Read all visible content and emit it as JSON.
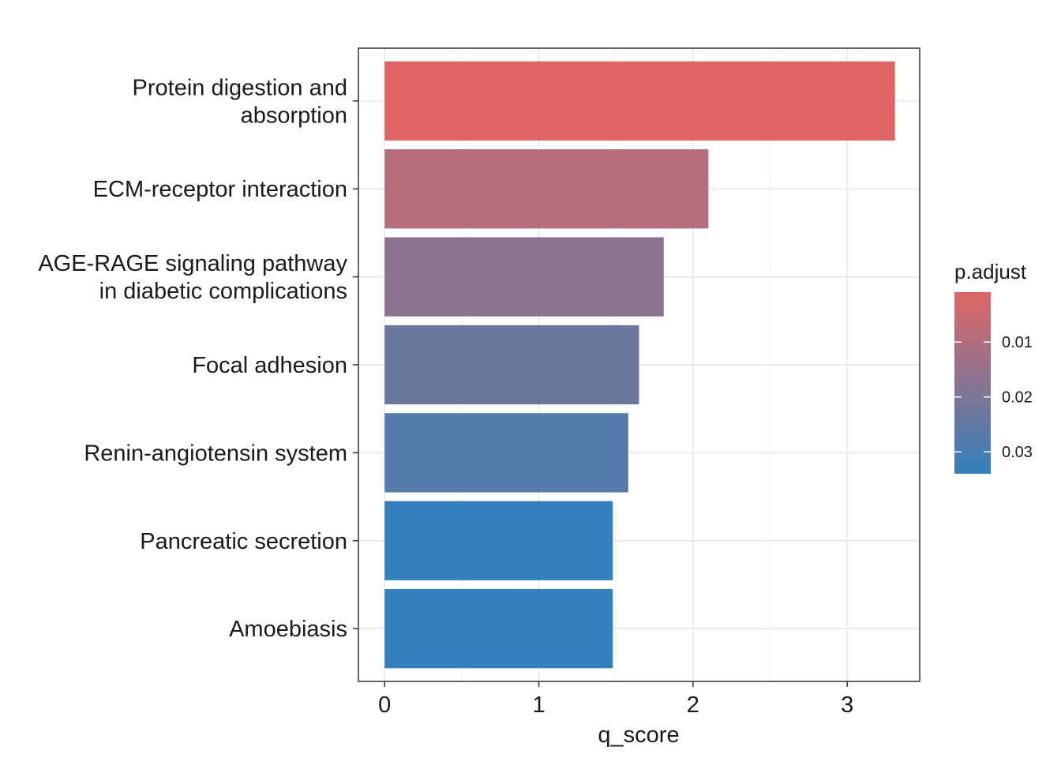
{
  "chart_data": {
    "type": "bar",
    "orientation": "horizontal",
    "title": "",
    "xlabel": "q_score",
    "ylabel": "",
    "xlim": [
      -0.17,
      3.47
    ],
    "x_ticks": [
      0,
      1,
      2,
      3
    ],
    "grid": true,
    "categories": [
      [
        "Protein digestion and",
        "absorption"
      ],
      [
        "ECM-receptor interaction"
      ],
      [
        "AGE-RAGE signaling pathway",
        "in diabetic complications"
      ],
      [
        "Focal adhesion"
      ],
      [
        "Renin-angiotensin system"
      ],
      [
        "Pancreatic secretion"
      ],
      [
        "Amoebiasis"
      ]
    ],
    "values": [
      3.31,
      2.1,
      1.81,
      1.65,
      1.58,
      1.48,
      1.48
    ],
    "p_adjust": [
      0.0009,
      0.0091,
      0.017,
      0.023,
      0.0277,
      0.034,
      0.034
    ],
    "legend": {
      "title": "p.adjust",
      "placement": "right",
      "range": [
        0.0009,
        0.034
      ],
      "ticks": [
        {
          "value": 0.01,
          "label": "0.01"
        },
        {
          "value": 0.02,
          "label": "0.02"
        },
        {
          "value": 0.03,
          "label": "0.03"
        }
      ],
      "color_low": "#E06666",
      "color_high": "#3380BC"
    }
  }
}
